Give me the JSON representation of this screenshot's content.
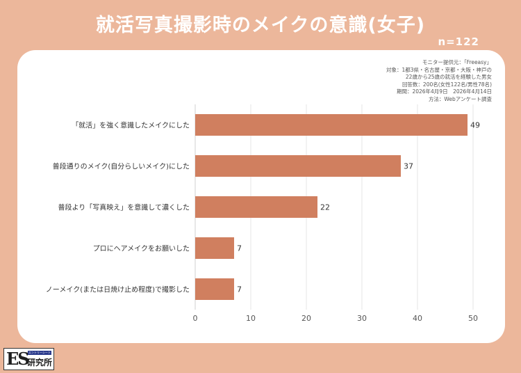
{
  "title": "就活写真撮影時のメイクの意識(女子)",
  "sample": "n=122",
  "meta": {
    "lines": [
      "モニター提供元：「Freeasy」",
      "対象：1都3県・名古屋・京都・大阪・神戸の",
      "22歳から25歳の就活を経験した男女",
      "回答数：200名(女性122名/男性78名)",
      "期間：2026年4月9日　2026年4月14日",
      "方法：Webアンケート調査"
    ]
  },
  "logo": {
    "es": "ES",
    "small": "エントリーシート",
    "ken": "研究所"
  },
  "colors": {
    "background": "#ecb79b",
    "bar": "#d07f5f",
    "grid": "#e6e6e6"
  },
  "chart_data": {
    "type": "bar",
    "orientation": "horizontal",
    "categories": [
      "「就活」を強く意識したメイクにした",
      "普段通りのメイク(自分らしいメイク)にした",
      "普段より「写真映え」を意識して濃くした",
      "プロにヘアメイクをお願いした",
      "ノーメイク(または日焼け止め程度)で撮影した"
    ],
    "values": [
      49,
      37,
      22,
      7,
      7
    ],
    "xlim": [
      0,
      50
    ],
    "xticks": [
      0,
      10,
      20,
      30,
      40,
      50
    ],
    "grid": true
  }
}
